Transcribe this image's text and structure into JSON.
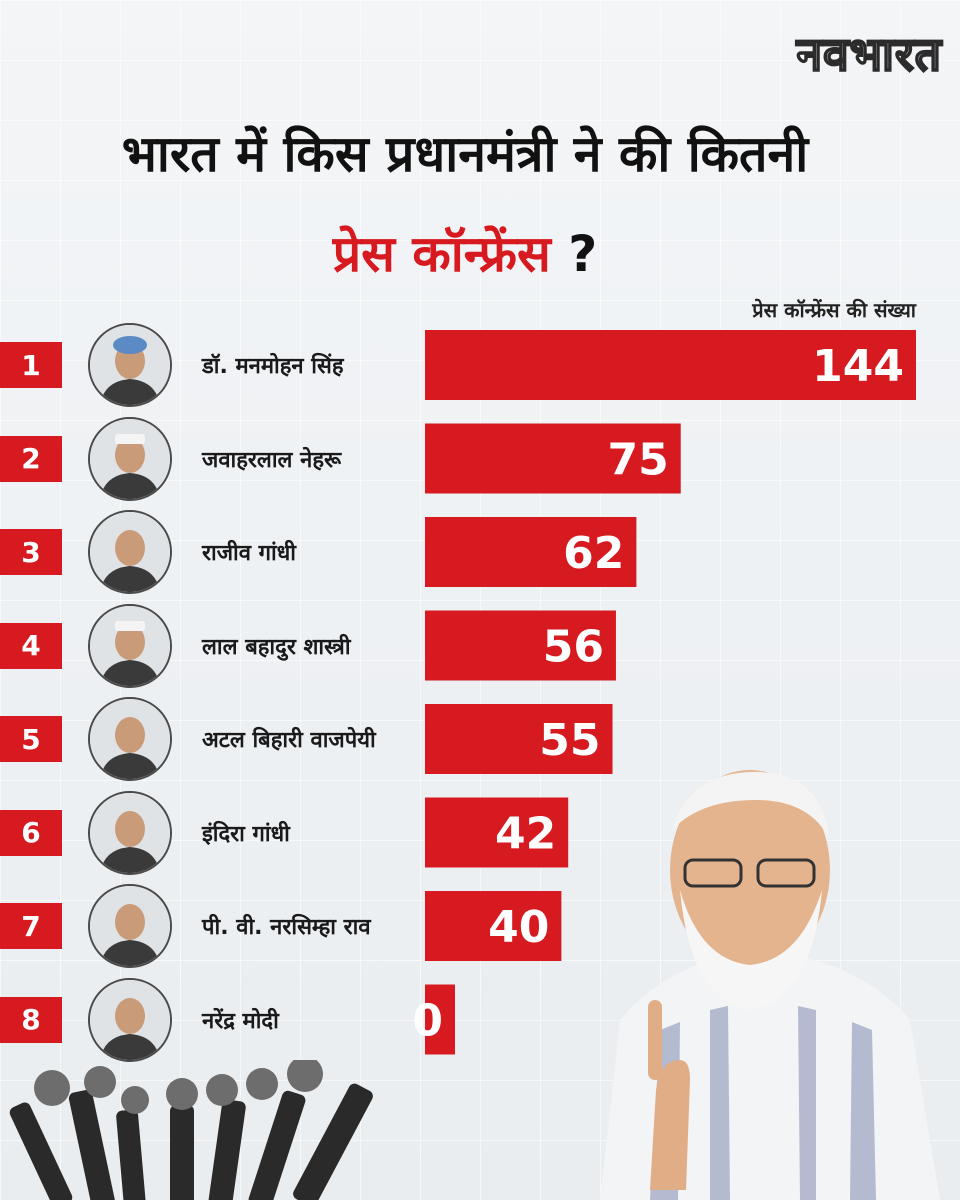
{
  "brand": "नवभारत",
  "title": {
    "line1": "भारत में किस प्रधानमंत्री ने की कितनी",
    "highlight": "प्रेस कॉन्फ्रेंस",
    "question_mark": "?"
  },
  "axis_caption": "प्रेस कॉन्फ्रेंस की संख्या",
  "colors": {
    "accent": "#d71920",
    "text": "#111111"
  },
  "rows": [
    {
      "rank": "1",
      "name": "डॉ. मनमोहन सिंह",
      "value_label": "144",
      "avatar": "turban-portrait"
    },
    {
      "rank": "2",
      "name": "जवाहरलाल नेहरू",
      "value_label": "75",
      "avatar": "cap-portrait"
    },
    {
      "rank": "3",
      "name": "राजीव गांधी",
      "value_label": "62",
      "avatar": "portrait"
    },
    {
      "rank": "4",
      "name": "लाल बहादुर शास्त्री",
      "value_label": "56",
      "avatar": "cap-portrait"
    },
    {
      "rank": "5",
      "name": "अटल बिहारी वाजपेयी",
      "value_label": "55",
      "avatar": "portrait"
    },
    {
      "rank": "6",
      "name": "इंदिरा गांधी",
      "value_label": "42",
      "avatar": "portrait"
    },
    {
      "rank": "7",
      "name": "पी. वी. नरसिम्हा राव",
      "value_label": "40",
      "avatar": "portrait"
    },
    {
      "rank": "8",
      "name": "नरेंद्र मोदी",
      "value_label": "0",
      "avatar": "portrait"
    }
  ],
  "chart_data": {
    "type": "bar",
    "orientation": "horizontal",
    "categories": [
      "डॉ. मनमोहन सिंह",
      "जवाहरलाल नेहरू",
      "राजीव गांधी",
      "लाल बहादुर शास्त्री",
      "अटल बिहारी वाजपेयी",
      "इंदिरा गांधी",
      "पी. वी. नरसिम्हा राव",
      "नरेंद्र मोदी"
    ],
    "values": [
      144,
      75,
      62,
      56,
      55,
      42,
      40,
      0
    ],
    "title": "भारत में किस प्रधानमंत्री ने की कितनी प्रेस कॉन्फ्रेंस ?",
    "xlabel": "प्रेस कॉन्फ्रेंस की संख्या",
    "ylabel": "",
    "grid": false,
    "legend": "none",
    "bar_color": "#d71920"
  }
}
